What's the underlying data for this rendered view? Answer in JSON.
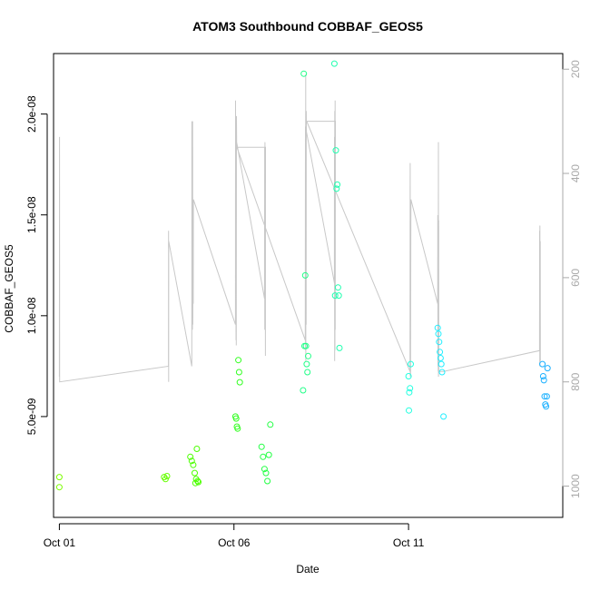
{
  "chart_data": {
    "type": "scatter",
    "title": "ATOM3 Southbound COBBAF_GEOS5",
    "xlabel": "Date",
    "ylabel": "COBBAF_GEOS5",
    "xlim": [
      "2016-09-30T20:00",
      "2016-10-15T10:00"
    ],
    "ylim": [
      0,
      2.3e-08
    ],
    "y2lim": [
      1060,
      170
    ],
    "x_ticks": [
      "2016-10-01",
      "2016-10-06",
      "2016-10-11"
    ],
    "x_tick_labels": [
      "Oct 01",
      "Oct 06",
      "Oct 11"
    ],
    "y_ticks": [
      5e-09,
      1e-08,
      1.5e-08,
      2e-08
    ],
    "y_tick_labels": [
      "5.0e-09",
      "1.0e-08",
      "1.5e-08",
      "2.0e-08"
    ],
    "y2_ticks": [
      200,
      400,
      600,
      800,
      1000
    ],
    "y2_tick_labels": [
      "200",
      "400",
      "600",
      "800",
      "1000"
    ],
    "grid": false,
    "legend": "none",
    "colors": {
      "line": "#c8c8c8",
      "axis": "#000000",
      "right_axis": "#a9a9a9"
    },
    "series": [
      {
        "kind": "pressure-line",
        "axis": "right",
        "color": "#c8c8c8",
        "points": [
          [
            "2016-10-01T00:00",
            790
          ],
          [
            "2016-10-01T00:06",
            330
          ],
          [
            "2016-10-01T00:12",
            800
          ],
          [
            "2016-10-04T03:00",
            770
          ],
          [
            "2016-10-04T03:04",
            510
          ],
          [
            "2016-10-04T03:08",
            800
          ],
          [
            "2016-10-04T03:12",
            530
          ],
          [
            "2016-10-04T19:00",
            770
          ],
          [
            "2016-10-04T19:06",
            300
          ],
          [
            "2016-10-04T19:12",
            700
          ],
          [
            "2016-10-04T19:20",
            330
          ],
          [
            "2016-10-04T19:28",
            700
          ],
          [
            "2016-10-04T19:36",
            300
          ],
          [
            "2016-10-04T19:44",
            690
          ],
          [
            "2016-10-04T19:52",
            460
          ],
          [
            "2016-10-04T20:00",
            650
          ],
          [
            "2016-10-04T20:08",
            450
          ],
          [
            "2016-10-06T01:00",
            690
          ],
          [
            "2016-10-06T01:06",
            260
          ],
          [
            "2016-10-06T01:12",
            640
          ],
          [
            "2016-10-06T01:18",
            300
          ],
          [
            "2016-10-06T01:24",
            720
          ],
          [
            "2016-10-06T01:30",
            310
          ],
          [
            "2016-10-06T01:36",
            730
          ],
          [
            "2016-10-06T01:42",
            290
          ],
          [
            "2016-10-06T01:50",
            340
          ],
          [
            "2016-10-06T21:00",
            640
          ],
          [
            "2016-10-06T21:06",
            350
          ],
          [
            "2016-10-06T21:12",
            700
          ],
          [
            "2016-10-06T21:18",
            340
          ],
          [
            "2016-10-06T21:24",
            690
          ],
          [
            "2016-10-06T21:30",
            360
          ],
          [
            "2016-10-06T21:36",
            750
          ],
          [
            "2016-10-06T21:42",
            350
          ],
          [
            "2016-10-06T02:00",
            350
          ],
          [
            "2016-10-08T01:00",
            720
          ],
          [
            "2016-10-08T01:06",
            310
          ],
          [
            "2016-10-08T01:12",
            740
          ],
          [
            "2016-10-08T01:18",
            210
          ],
          [
            "2016-10-08T01:24",
            760
          ],
          [
            "2016-10-08T01:30",
            330
          ],
          [
            "2016-10-08T01:36",
            690
          ],
          [
            "2016-10-08T01:42",
            280
          ],
          [
            "2016-10-08T01:50",
            320
          ],
          [
            "2016-10-08T21:00",
            610
          ],
          [
            "2016-10-08T21:06",
            330
          ],
          [
            "2016-10-08T21:12",
            760
          ],
          [
            "2016-10-08T21:18",
            280
          ],
          [
            "2016-10-08T21:24",
            740
          ],
          [
            "2016-10-08T21:30",
            260
          ],
          [
            "2016-10-08T21:36",
            700
          ],
          [
            "2016-10-08T21:42",
            300
          ],
          [
            "2016-10-08T02:00",
            300
          ],
          [
            "2016-10-11T01:00",
            780
          ],
          [
            "2016-10-11T01:06",
            380
          ],
          [
            "2016-10-11T01:12",
            790
          ],
          [
            "2016-10-11T01:18",
            520
          ],
          [
            "2016-10-11T01:24",
            790
          ],
          [
            "2016-10-11T01:30",
            600
          ],
          [
            "2016-10-11T01:36",
            450
          ],
          [
            "2016-10-11T20:00",
            650
          ],
          [
            "2016-10-11T20:06",
            480
          ],
          [
            "2016-10-11T20:12",
            770
          ],
          [
            "2016-10-11T20:18",
            490
          ],
          [
            "2016-10-11T20:24",
            780
          ],
          [
            "2016-10-11T20:30",
            340
          ],
          [
            "2016-10-11T20:36",
            790
          ],
          [
            "2016-10-11T20:42",
            490
          ],
          [
            "2016-10-11T20:48",
            780
          ],
          [
            "2016-10-12T00:00",
            780
          ],
          [
            "2016-10-14T18:00",
            740
          ],
          [
            "2016-10-14T18:06",
            510
          ],
          [
            "2016-10-14T18:12",
            770
          ],
          [
            "2016-10-14T18:18",
            500
          ],
          [
            "2016-10-14T18:24",
            760
          ],
          [
            "2016-10-14T18:30",
            530
          ],
          [
            "2016-10-14T18:36",
            760
          ]
        ]
      },
      {
        "kind": "points",
        "axis": "left",
        "points": [
          [
            "2016-10-01T00:00",
            2e-09,
            "#7cfc00"
          ],
          [
            "2016-10-01T00:00",
            1.5e-09,
            "#7cfc00"
          ],
          [
            "2016-10-04T00:00",
            2e-09,
            "#66ff00"
          ],
          [
            "2016-10-04T01:00",
            1.9e-09,
            "#66ff00"
          ],
          [
            "2016-10-04T02:00",
            2.05e-09,
            "#66ff00"
          ],
          [
            "2016-10-04T18:00",
            3e-09,
            "#4cff00"
          ],
          [
            "2016-10-04T19:00",
            2.8e-09,
            "#4cff00"
          ],
          [
            "2016-10-04T20:00",
            2.6e-09,
            "#4cff00"
          ],
          [
            "2016-10-04T21:00",
            2.2e-09,
            "#4cff00"
          ],
          [
            "2016-10-04T22:00",
            1.9e-09,
            "#4cff00"
          ],
          [
            "2016-10-04T23:00",
            1.8e-09,
            "#4cff00"
          ],
          [
            "2016-10-04T22:30",
            3.4e-09,
            "#4cff00"
          ],
          [
            "2016-10-04T21:30",
            1.7e-09,
            "#4cff00"
          ],
          [
            "2016-10-04T23:30",
            1.75e-09,
            "#4cff00"
          ],
          [
            "2016-10-06T01:00",
            5e-09,
            "#33ff22"
          ],
          [
            "2016-10-06T01:30",
            4.9e-09,
            "#33ff22"
          ],
          [
            "2016-10-06T02:00",
            4.5e-09,
            "#33ff22"
          ],
          [
            "2016-10-06T02:30",
            4.4e-09,
            "#33ff22"
          ],
          [
            "2016-10-06T03:00",
            7.8e-09,
            "#33ff22"
          ],
          [
            "2016-10-06T03:30",
            7.2e-09,
            "#33ff22"
          ],
          [
            "2016-10-06T04:00",
            6.7e-09,
            "#33ff22"
          ],
          [
            "2016-10-06T19:00",
            3.5e-09,
            "#22ff44"
          ],
          [
            "2016-10-06T20:00",
            3e-09,
            "#22ff44"
          ],
          [
            "2016-10-06T21:00",
            2.4e-09,
            "#22ff44"
          ],
          [
            "2016-10-06T22:00",
            2.2e-09,
            "#22ff44"
          ],
          [
            "2016-10-06T23:00",
            1.8e-09,
            "#22ff44"
          ],
          [
            "2016-10-07T00:00",
            3.1e-09,
            "#22ff44"
          ],
          [
            "2016-10-07T01:00",
            4.6e-09,
            "#22ff44"
          ],
          [
            "2016-10-08T00:00",
            2.2e-08,
            "#22ff88"
          ],
          [
            "2016-10-08T01:00",
            1.2e-08,
            "#22ff88"
          ],
          [
            "2016-10-08T00:30",
            8.5e-09,
            "#22ff88"
          ],
          [
            "2016-10-08T01:30",
            8.5e-09,
            "#22ff88"
          ],
          [
            "2016-10-08T02:00",
            7.6e-09,
            "#22ff88"
          ],
          [
            "2016-10-08T02:30",
            7.2e-09,
            "#22ff88"
          ],
          [
            "2016-10-07T23:30",
            6.3e-09,
            "#22ff88"
          ],
          [
            "2016-10-08T03:00",
            8e-09,
            "#22ff88"
          ],
          [
            "2016-10-08T21:00",
            2.25e-08,
            "#22ffb0"
          ],
          [
            "2016-10-08T22:00",
            1.82e-08,
            "#22ffb0"
          ],
          [
            "2016-10-08T23:00",
            1.65e-08,
            "#22ffb0"
          ],
          [
            "2016-10-08T22:30",
            1.63e-08,
            "#22ffb0"
          ],
          [
            "2016-10-08T21:30",
            1.1e-08,
            "#22ffb0"
          ],
          [
            "2016-10-08T23:30",
            1.14e-08,
            "#22ffb0"
          ],
          [
            "2016-10-09T00:00",
            1.1e-08,
            "#22ffb0"
          ],
          [
            "2016-10-09T00:30",
            8.4e-09,
            "#22ffb0"
          ],
          [
            "2016-10-11T00:00",
            7e-09,
            "#22ffe0"
          ],
          [
            "2016-10-11T01:00",
            6.4e-09,
            "#22ffe0"
          ],
          [
            "2016-10-11T00:30",
            6.2e-09,
            "#22ffe0"
          ],
          [
            "2016-10-11T01:30",
            7.6e-09,
            "#22ffe0"
          ],
          [
            "2016-10-11T00:15",
            5.3e-09,
            "#22ffe0"
          ],
          [
            "2016-10-11T20:00",
            9.4e-09,
            "#22eeff"
          ],
          [
            "2016-10-11T20:30",
            9.1e-09,
            "#22eeff"
          ],
          [
            "2016-10-11T21:00",
            8.7e-09,
            "#22eeff"
          ],
          [
            "2016-10-11T21:30",
            8.2e-09,
            "#22eeff"
          ],
          [
            "2016-10-11T22:00",
            7.9e-09,
            "#22eeff"
          ],
          [
            "2016-10-11T22:30",
            7.6e-09,
            "#22eeff"
          ],
          [
            "2016-10-11T23:00",
            7.2e-09,
            "#22eeff"
          ],
          [
            "2016-10-12T00:00",
            5e-09,
            "#22eeff"
          ],
          [
            "2016-10-14T20:00",
            7.6e-09,
            "#1ab0ff"
          ],
          [
            "2016-10-14T20:30",
            7e-09,
            "#1ab0ff"
          ],
          [
            "2016-10-14T21:00",
            6.8e-09,
            "#1ab0ff"
          ],
          [
            "2016-10-14T21:30",
            6e-09,
            "#1ab0ff"
          ],
          [
            "2016-10-14T22:00",
            5.6e-09,
            "#1ab0ff"
          ],
          [
            "2016-10-14T22:30",
            5.5e-09,
            "#1ab0ff"
          ],
          [
            "2016-10-14T23:00",
            6e-09,
            "#1ab0ff"
          ],
          [
            "2016-10-14T23:30",
            7.4e-09,
            "#1ab0ff"
          ]
        ]
      }
    ]
  }
}
